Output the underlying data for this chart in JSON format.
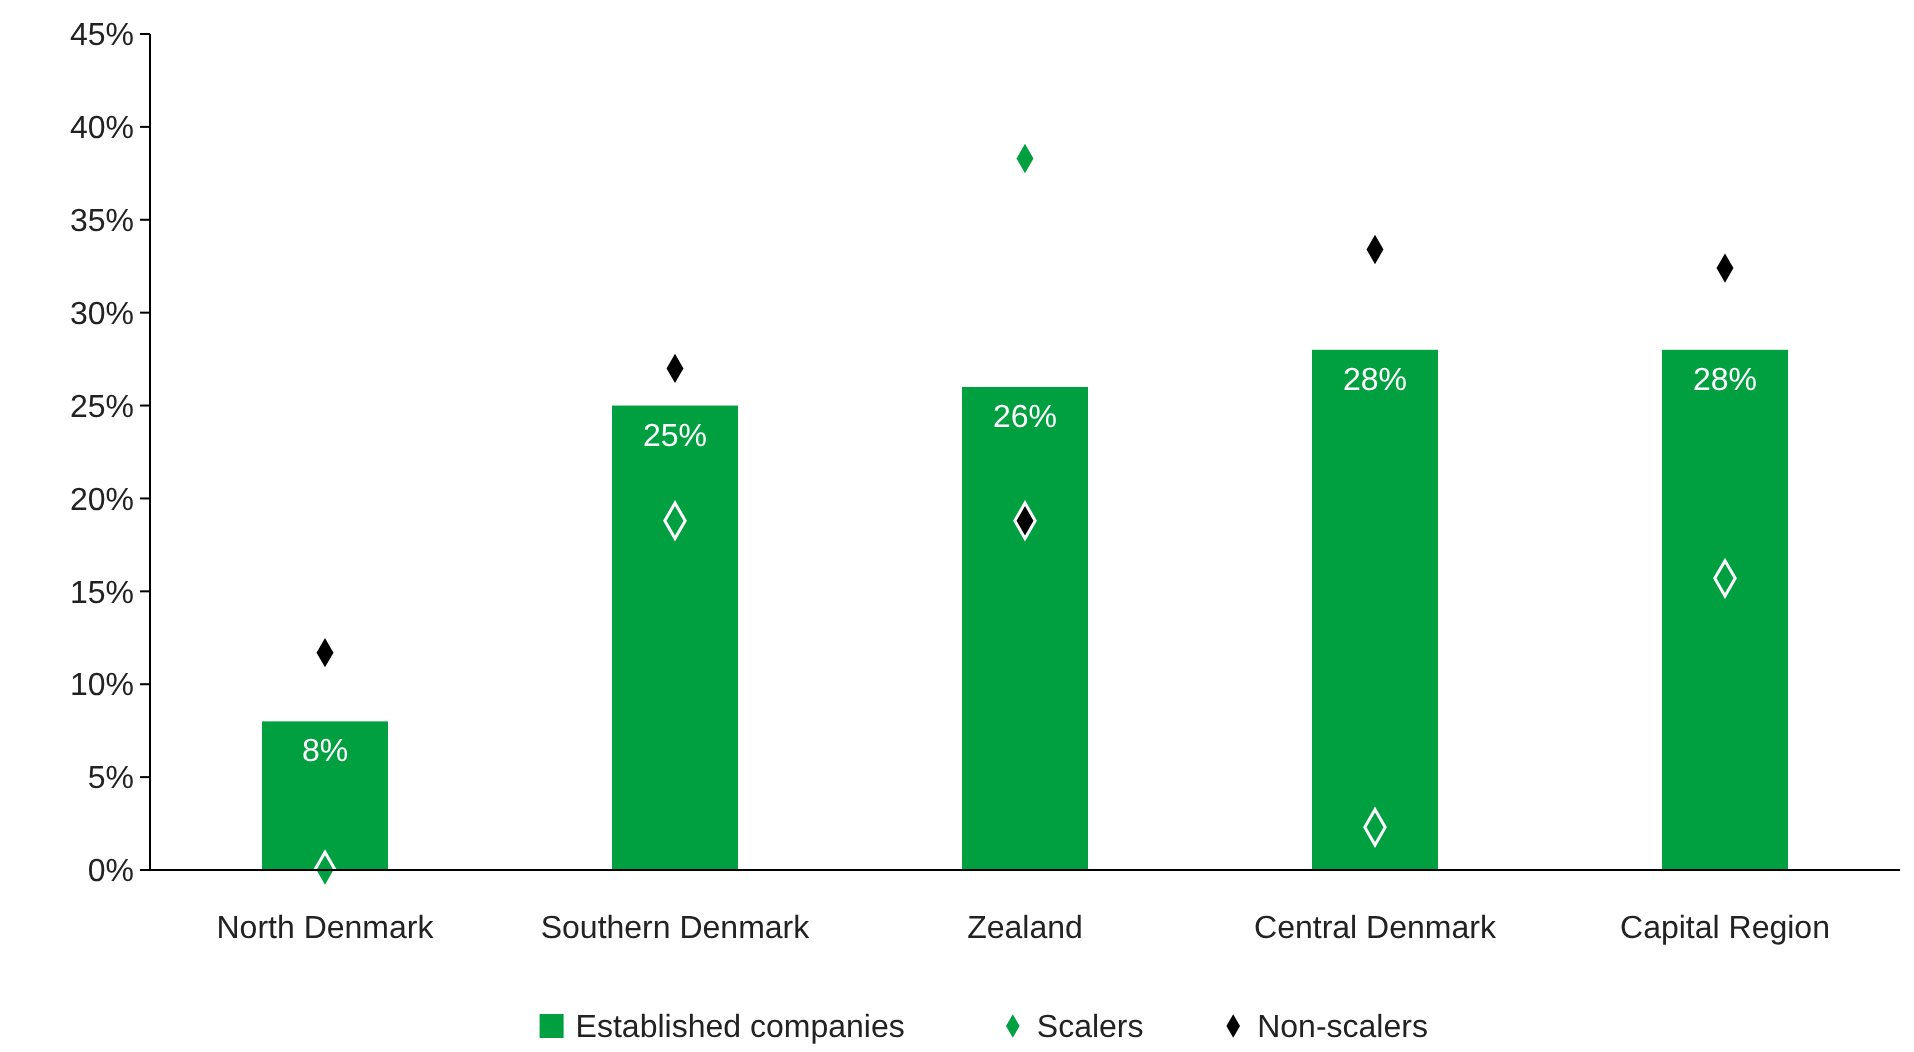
{
  "chart_data": {
    "type": "bar",
    "categories": [
      "North Denmark",
      "Southern Denmark",
      "Zealand",
      "Central Denmark",
      "Capital Region"
    ],
    "series": [
      {
        "name": "Established companies",
        "color": "#00a040",
        "values": [
          8,
          25,
          26,
          28,
          28
        ],
        "value_labels": [
          "8%",
          "25%",
          "26%",
          "28%",
          "28%"
        ]
      },
      {
        "name": "Scalers",
        "type": "scatter",
        "color": "#00a040",
        "values": [
          0,
          18.8,
          38.3,
          2.3,
          15.7
        ]
      },
      {
        "name": "Non-scalers",
        "type": "scatter",
        "color": "#000000",
        "values": [
          11.7,
          27.0,
          18.8,
          33.4,
          32.4
        ]
      }
    ],
    "ylim": [
      0,
      45
    ],
    "yticks": [
      {
        "value": 0,
        "label": "0%"
      },
      {
        "value": 5,
        "label": "5%"
      },
      {
        "value": 10,
        "label": "10%"
      },
      {
        "value": 15,
        "label": "15%"
      },
      {
        "value": 20,
        "label": "20%"
      },
      {
        "value": 25,
        "label": "25%"
      },
      {
        "value": 30,
        "label": "30%"
      },
      {
        "value": 35,
        "label": "35%"
      },
      {
        "value": 40,
        "label": "40%"
      },
      {
        "value": 45,
        "label": "45%"
      }
    ],
    "grid": false,
    "legend": "bottom",
    "marker": "diamond"
  }
}
